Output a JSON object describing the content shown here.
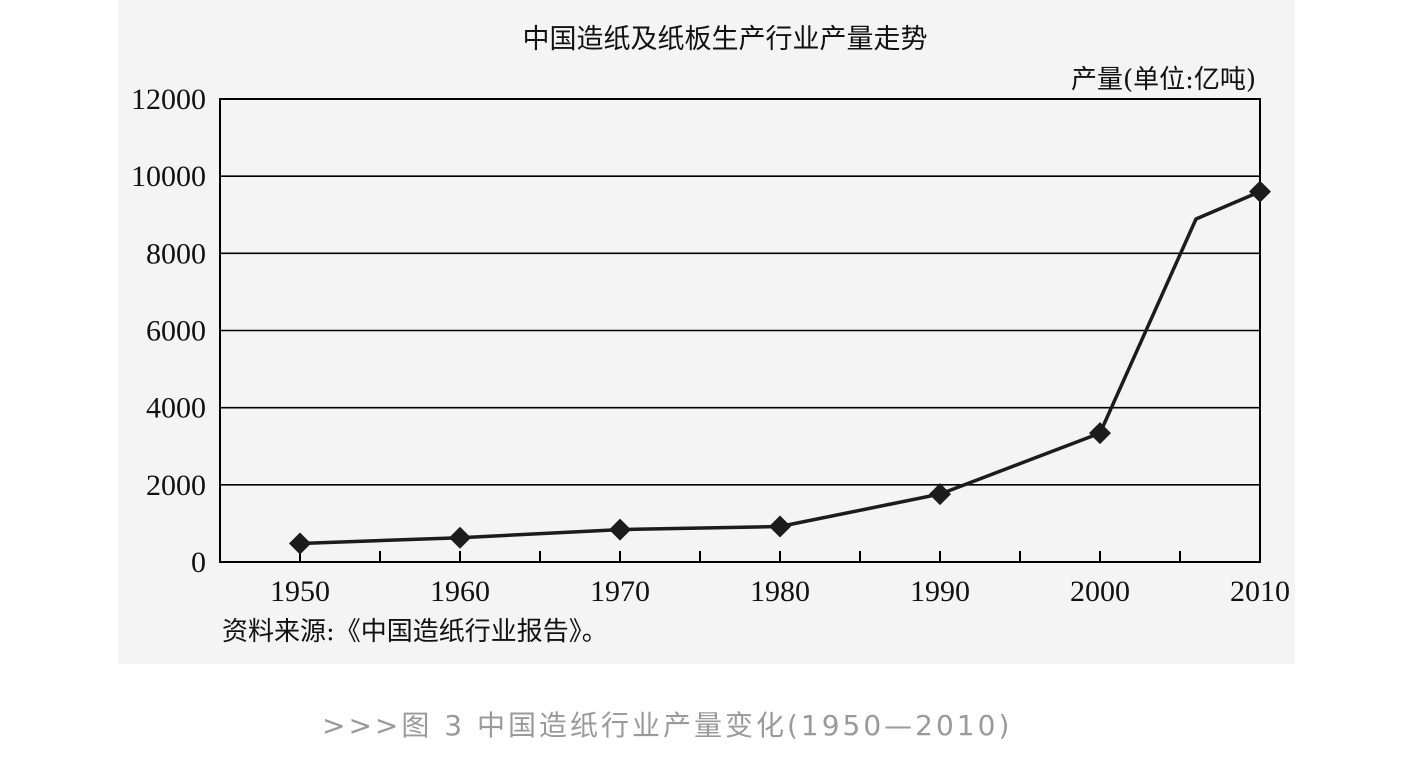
{
  "chart_data": {
    "type": "line",
    "title": "中国造纸及纸板生产行业产量走势",
    "ylabel": "产量(单位:亿吨)",
    "xlabel": "",
    "x_ticks": [
      "1950",
      "1960",
      "1970",
      "1980",
      "1990",
      "2000",
      "2010"
    ],
    "y_ticks": [
      "0",
      "2000",
      "4000",
      "6000",
      "8000",
      "10000",
      "12000"
    ],
    "xlim": [
      1945,
      2010
    ],
    "ylim": [
      0,
      12000
    ],
    "grid": "horizontal",
    "series": [
      {
        "points": [
          {
            "x": 1950,
            "y": 480,
            "marker": true
          },
          {
            "x": 1960,
            "y": 630,
            "marker": true
          },
          {
            "x": 1970,
            "y": 840,
            "marker": true
          },
          {
            "x": 1980,
            "y": 920,
            "marker": true
          },
          {
            "x": 1990,
            "y": 1760,
            "marker": true
          },
          {
            "x": 2000,
            "y": 3340,
            "marker": true
          },
          {
            "x": 2006,
            "y": 8890,
            "marker": false
          },
          {
            "x": 2010,
            "y": 9600,
            "marker": true
          }
        ]
      }
    ],
    "colors": {
      "series": "#1c1c1c",
      "background": "#f4f4f4"
    },
    "marker_shape": "diamond"
  },
  "source_note": "资料来源:《中国造纸行业报告》。",
  "caption": ">>>图 3 中国造纸行业产量变化(1950—2010)"
}
